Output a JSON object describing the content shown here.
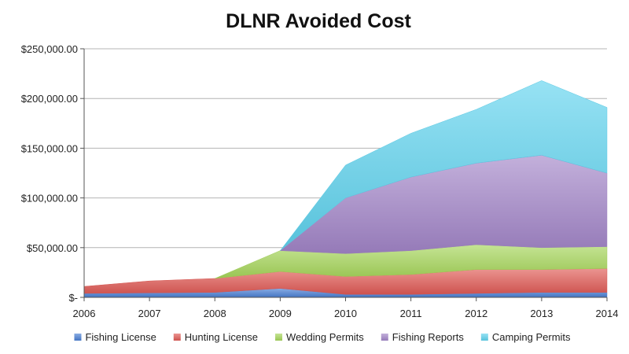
{
  "chart_data": {
    "type": "area",
    "stacked": true,
    "title": "DLNR Avoided Cost",
    "xlabel": "",
    "ylabel": "",
    "x": [
      "2006",
      "2007",
      "2008",
      "2009",
      "2010",
      "2011",
      "2012",
      "2013",
      "2014"
    ],
    "ylim": [
      0,
      250000
    ],
    "y_ticks": [
      0,
      50000,
      100000,
      150000,
      200000,
      250000
    ],
    "y_tick_labels": [
      "$-",
      "$50,000.00",
      "$100,000.00",
      "$150,000.00",
      "$200,000.00",
      "$250,000.00"
    ],
    "grid": true,
    "legend_position": "bottom",
    "series": [
      {
        "name": "Fishing License",
        "color": "#4a7fd4",
        "values": [
          4000,
          4500,
          5000,
          9000,
          3000,
          3000,
          4000,
          5000,
          5000
        ]
      },
      {
        "name": "Hunting License",
        "color": "#e05a55",
        "values": [
          7000,
          12000,
          14000,
          17000,
          18000,
          20000,
          24000,
          23000,
          24000
        ]
      },
      {
        "name": "Wedding Permits",
        "color": "#a6d65a",
        "values": [
          null,
          null,
          0,
          21000,
          23000,
          24000,
          25000,
          22000,
          22000
        ]
      },
      {
        "name": "Fishing Reports",
        "color": "#a285c8",
        "values": [
          null,
          null,
          null,
          0,
          56000,
          74000,
          82000,
          93000,
          74000
        ]
      },
      {
        "name": "Camping Permits",
        "color": "#5fd3ee",
        "values": [
          null,
          null,
          null,
          0,
          33000,
          44000,
          54000,
          75000,
          66000
        ]
      }
    ]
  }
}
